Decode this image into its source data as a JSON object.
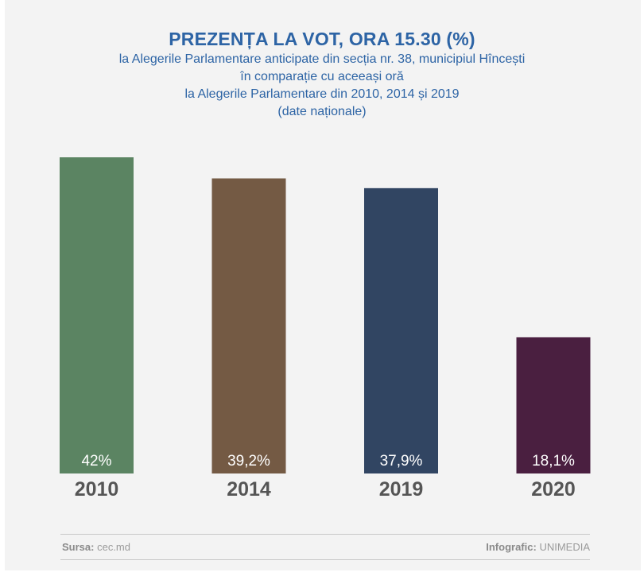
{
  "header": {
    "title": "PREZENȚA LA VOT, ORA 15.30 (%)",
    "subtitle_lines": [
      "la Alegerile Parlamentare anticipate din secția nr. 38, municipiul Hîncești",
      "în comparație cu aceeași oră",
      "la Alegerile Parlamentare din 2010, 2014 și 2019",
      "(date naționale)"
    ]
  },
  "chart_data": {
    "type": "bar",
    "categories": [
      "2010",
      "2014",
      "2019",
      "2020"
    ],
    "values": [
      42,
      39.2,
      37.9,
      18.1
    ],
    "value_labels": [
      "42%",
      "39,2%",
      "37,9%",
      "18,1%"
    ],
    "colors": [
      "#5b8462",
      "#745a44",
      "#314562",
      "#4a1f40"
    ],
    "ylim": [
      0,
      42
    ],
    "grid": false,
    "legend": "none"
  },
  "footer": {
    "source_label": "Sursa:",
    "source_value": "cec.md",
    "credit_label": "Infografic:",
    "credit_value": "UNIMEDIA"
  }
}
